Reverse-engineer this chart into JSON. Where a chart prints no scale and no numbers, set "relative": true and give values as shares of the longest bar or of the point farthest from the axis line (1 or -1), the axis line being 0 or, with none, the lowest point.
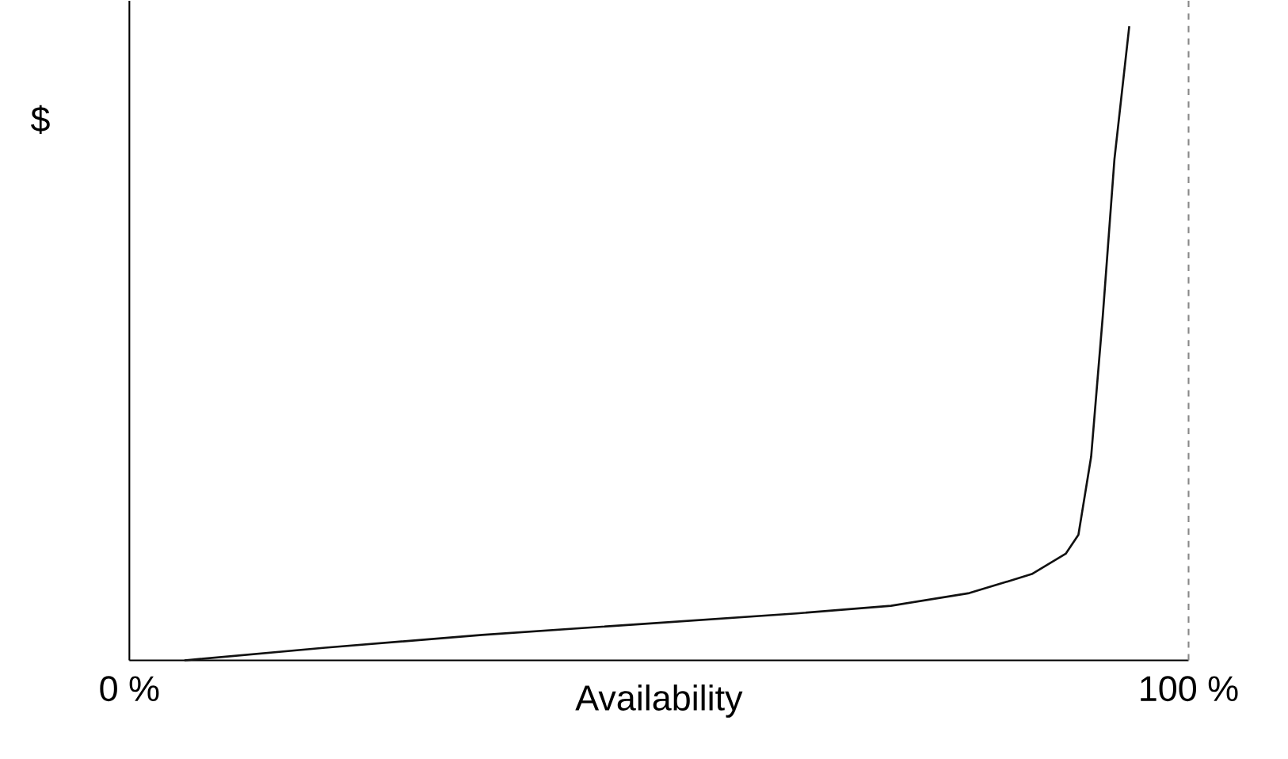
{
  "chart_data": {
    "type": "line",
    "xlabel": "Availability",
    "ylabel": "$",
    "relative": true,
    "x": [
      5.2,
      18.5,
      33.3,
      48.1,
      63.0,
      71.9,
      79.3,
      85.2,
      88.4,
      89.6,
      90.8,
      91.9,
      93.0,
      94.4
    ],
    "series": [
      {
        "color": "#111111",
        "values": [
          0,
          0.02,
          0.04,
          0.057,
          0.074,
          0.086,
          0.106,
          0.136,
          0.168,
          0.198,
          0.321,
          0.543,
          0.79,
          1.0
        ]
      }
    ],
    "xlim": [
      0,
      100
    ],
    "xticks": [
      {
        "value": 0,
        "label": "0 %"
      },
      {
        "value": 100,
        "label": "100 %"
      }
    ],
    "ref_lines": [
      {
        "axis": "x",
        "value": 100,
        "color": "#888888",
        "line_style": "dashed"
      }
    ],
    "marker": "none",
    "line_style": "solid",
    "grid": false
  }
}
